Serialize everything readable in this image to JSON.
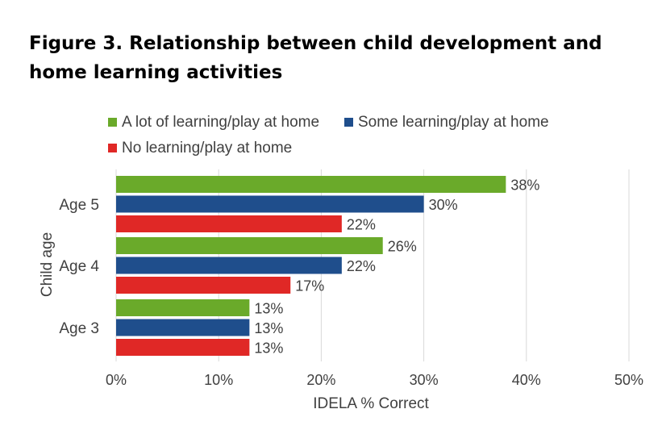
{
  "title": "Figure 3. Relationship between child development and home learning activities",
  "chart_data": {
    "type": "bar",
    "orientation": "horizontal",
    "categories": [
      "Age 5",
      "Age 4",
      "Age 3"
    ],
    "series": [
      {
        "name": "A lot of learning/play at home",
        "color": "#6aaa2a",
        "values": [
          38,
          26,
          13
        ]
      },
      {
        "name": "Some learning/play at home",
        "color": "#1f4e8c",
        "values": [
          30,
          22,
          13
        ]
      },
      {
        "name": "No learning/play at home",
        "color": "#e02826",
        "values": [
          22,
          17,
          13
        ]
      }
    ],
    "data_labels": [
      [
        "38%",
        "26%",
        "13%"
      ],
      [
        "30%",
        "22%",
        "13%"
      ],
      [
        "22%",
        "17%",
        "13%"
      ]
    ],
    "xlabel": "IDELA % Correct",
    "ylabel": "Child age",
    "xlim": [
      0,
      50
    ],
    "xticks": [
      "0%",
      "10%",
      "20%",
      "30%",
      "40%",
      "50%"
    ],
    "grid": "vertical",
    "legend": "top"
  }
}
